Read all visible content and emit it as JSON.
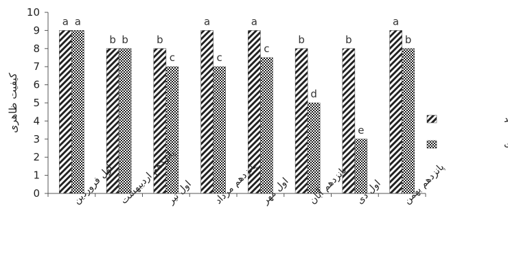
{
  "chart_data": {
    "type": "bar",
    "categories": [
      "اول فروردین",
      "پانزدهم اردیبهشت",
      "اول تیر",
      "پانزدهم مرداد",
      "اول مهر",
      "پانزدهم آبان",
      "اول دی",
      "پانزدهم بهمن"
    ],
    "series": [
      {
        "name": "چمانواش بلند",
        "values": [
          9,
          8,
          8,
          9,
          9,
          8,
          8,
          9
        ],
        "letters": [
          "a",
          "b",
          "b",
          "a",
          "a",
          "b",
          "b",
          "a"
        ]
      },
      {
        "name": "چمن اسپورت",
        "values": [
          9,
          8,
          7,
          7,
          7.5,
          5,
          3,
          8
        ],
        "letters": [
          "a",
          "b",
          "c",
          "c",
          "c",
          "d",
          "e",
          "b"
        ]
      }
    ],
    "ylabel": "کیفیت ظاهری",
    "ylim": [
      0,
      10
    ],
    "yticks": [
      0,
      1,
      2,
      3,
      4,
      5,
      6,
      7,
      8,
      9,
      10
    ],
    "grid": false,
    "legend": "right"
  }
}
